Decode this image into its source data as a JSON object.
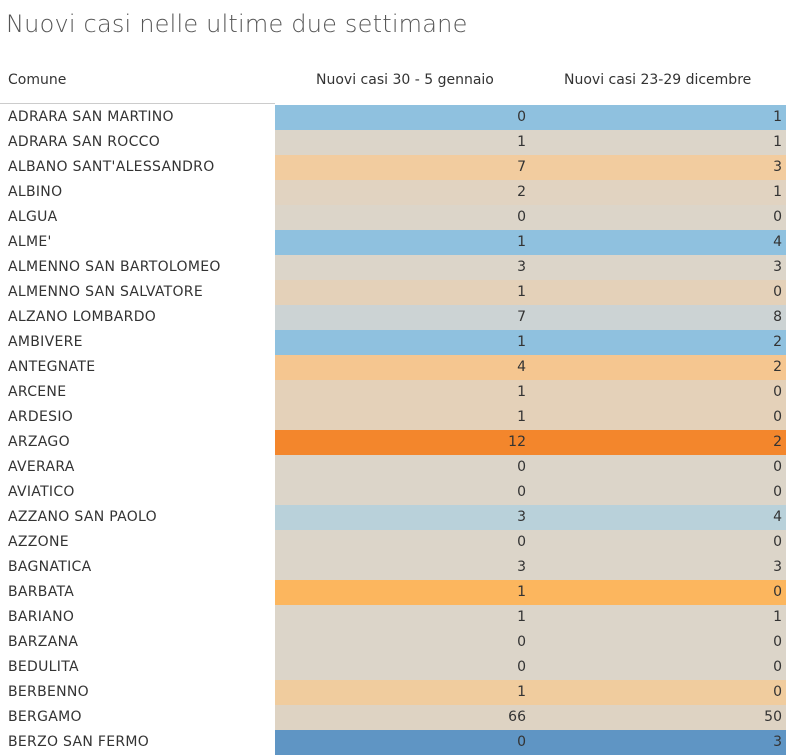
{
  "title": "Nuovi casi nelle ultime due settimane",
  "chart_data": {
    "type": "table",
    "title": "Nuovi casi nelle ultime due settimane",
    "columns": [
      "Comune",
      "Nuovi casi 30 - 5 gennaio",
      "Nuovi casi  23-29 dicembre"
    ],
    "rows": [
      {
        "comune": "ADRARA SAN MARTINO",
        "v1": 0,
        "v2": 1,
        "color": "#8fc1df"
      },
      {
        "comune": "ADRARA SAN ROCCO",
        "v1": 1,
        "v2": 1,
        "color": "#dcd5c9"
      },
      {
        "comune": "ALBANO SANT'ALESSANDRO",
        "v1": 7,
        "v2": 3,
        "color": "#f2cc9f"
      },
      {
        "comune": "ALBINO",
        "v1": 2,
        "v2": 1,
        "color": "#e1d3c1"
      },
      {
        "comune": "ALGUA",
        "v1": 0,
        "v2": 0,
        "color": "#dcd5c9"
      },
      {
        "comune": "ALME'",
        "v1": 1,
        "v2": 4,
        "color": "#8fc1df"
      },
      {
        "comune": "ALMENNO SAN BARTOLOMEO",
        "v1": 3,
        "v2": 3,
        "color": "#dcd5c9"
      },
      {
        "comune": "ALMENNO SAN SALVATORE",
        "v1": 1,
        "v2": 0,
        "color": "#e4d1b9"
      },
      {
        "comune": "ALZANO LOMBARDO",
        "v1": 7,
        "v2": 8,
        "color": "#ccd3d4"
      },
      {
        "comune": "AMBIVERE",
        "v1": 1,
        "v2": 2,
        "color": "#8fc1df"
      },
      {
        "comune": "ANTEGNATE",
        "v1": 4,
        "v2": 2,
        "color": "#f5c690"
      },
      {
        "comune": "ARCENE",
        "v1": 1,
        "v2": 0,
        "color": "#e4d1b9"
      },
      {
        "comune": "ARDESIO",
        "v1": 1,
        "v2": 0,
        "color": "#e4d1b9"
      },
      {
        "comune": "ARZAGO",
        "v1": 12,
        "v2": 2,
        "color": "#f3862c"
      },
      {
        "comune": "AVERARA",
        "v1": 0,
        "v2": 0,
        "color": "#dcd5c9"
      },
      {
        "comune": "AVIATICO",
        "v1": 0,
        "v2": 0,
        "color": "#dcd5c9"
      },
      {
        "comune": "AZZANO SAN PAOLO",
        "v1": 3,
        "v2": 4,
        "color": "#b9d1da"
      },
      {
        "comune": "AZZONE",
        "v1": 0,
        "v2": 0,
        "color": "#dcd5c9"
      },
      {
        "comune": "BAGNATICA",
        "v1": 3,
        "v2": 3,
        "color": "#dcd5c9"
      },
      {
        "comune": "BARBATA",
        "v1": 1,
        "v2": 0,
        "color": "#fcb65e"
      },
      {
        "comune": "BARIANO",
        "v1": 1,
        "v2": 1,
        "color": "#dcd5c9"
      },
      {
        "comune": "BARZANA",
        "v1": 0,
        "v2": 0,
        "color": "#dcd5c9"
      },
      {
        "comune": "BEDULITA",
        "v1": 0,
        "v2": 0,
        "color": "#dcd5c9"
      },
      {
        "comune": "BERBENNO",
        "v1": 1,
        "v2": 0,
        "color": "#f0cc9e"
      },
      {
        "comune": "BERGAMO",
        "v1": 66,
        "v2": 50,
        "color": "#ded3c3"
      },
      {
        "comune": "BERZO SAN FERMO",
        "v1": 0,
        "v2": 3,
        "color": "#5f95c4"
      }
    ]
  }
}
